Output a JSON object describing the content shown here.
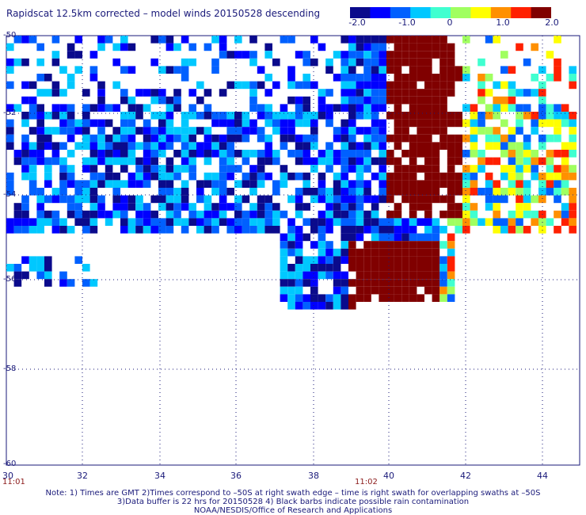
{
  "title": "Rapidscat 12.5km corrected – model winds 20150528 descending",
  "colorbar": {
    "tick_labels": [
      "-2.0",
      "-1.0",
      "0",
      "1.0",
      "2.0"
    ],
    "min": -2.0,
    "max": 2.0,
    "colors": [
      "#0a0a8c",
      "#0000ff",
      "#0060ff",
      "#00c8ff",
      "#40ffd0",
      "#a0ff60",
      "#ffff00",
      "#ff9000",
      "#ff2000",
      "#800000"
    ]
  },
  "axes": {
    "lat_labels": [
      "-50",
      "-52",
      "-54",
      "-56",
      "-58",
      "-60"
    ],
    "lon_labels": [
      "30",
      "32",
      "34",
      "36",
      "38",
      "40",
      "42",
      "44"
    ],
    "lat_range": [
      -60,
      -50
    ],
    "lon_range": [
      30,
      45
    ],
    "grid": "dotted"
  },
  "time_labels": [
    "11:01",
    "11:02"
  ],
  "notes": [
    "Note: 1) Times are GMT 2)Times correspond to –50S at right swath edge – time is right swath for overlapping swaths at –50S",
    "3)Data buffer is 22 hrs for 20150528 4) Black barbs indicate possible rain contamination",
    "NOAA/NESDIS/Office of Research and Applications"
  ]
}
